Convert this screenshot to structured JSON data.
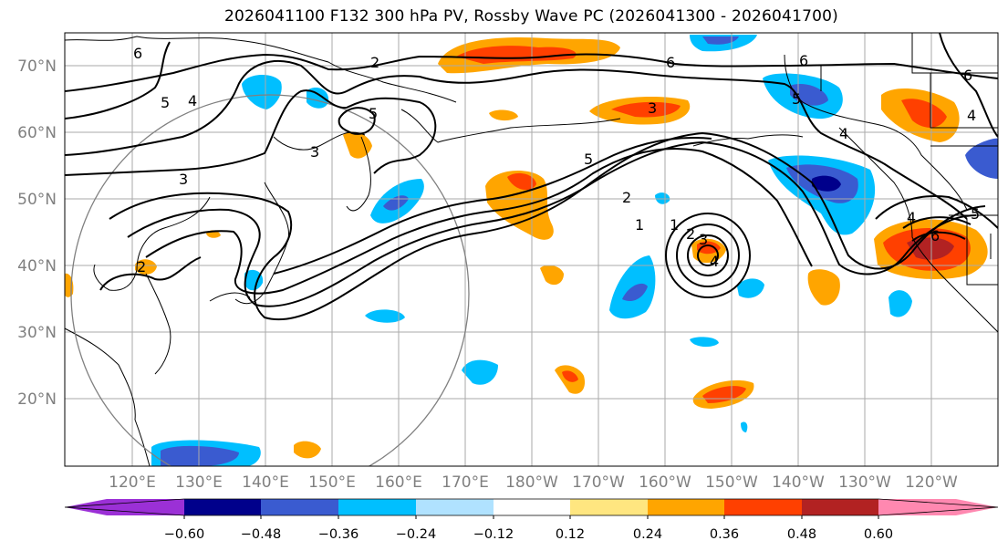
{
  "title": "2026041100 F132 300 hPa PV, Rossby Wave PC (2026041300 - 2026041700)",
  "latitude_labels": [
    "70°N",
    "60°N",
    "50°N",
    "40°N",
    "30°N",
    "20°N"
  ],
  "longitude_labels": [
    "120°E",
    "130°E",
    "140°E",
    "150°E",
    "160°E",
    "170°E",
    "180°W",
    "170°W",
    "160°W",
    "150°W",
    "140°W",
    "130°W",
    "120°W"
  ],
  "contour_labels": [
    "6",
    "5",
    "4",
    "2",
    "3",
    "6",
    "6",
    "5",
    "5",
    "4",
    "3",
    "3",
    "5",
    "2",
    "1",
    "1",
    "2",
    "3",
    "4",
    "2",
    "4",
    "6",
    "5",
    "6",
    "4"
  ],
  "colorbar": {
    "tick_labels": [
      "−0.60",
      "−0.48",
      "−0.36",
      "−0.24",
      "−0.12",
      "0.12",
      "0.24",
      "0.36",
      "0.48",
      "0.60"
    ],
    "colors": [
      "#9b30d6",
      "#00008b",
      "#3a5bd0",
      "#00bfff",
      "#b0e2ff",
      "#ffffff",
      "#ffe680",
      "#ffa500",
      "#ff4000",
      "#b22222",
      "#ff88b0"
    ]
  },
  "colors": {
    "neg_strong": "#3a5bd0",
    "neg_mid": "#00bfff",
    "neg_weak": "#b0e2ff",
    "pos_weak": "#ffe680",
    "pos_mid": "#ffa500",
    "pos_strong": "#ff4000",
    "pos_max": "#b22222"
  }
}
